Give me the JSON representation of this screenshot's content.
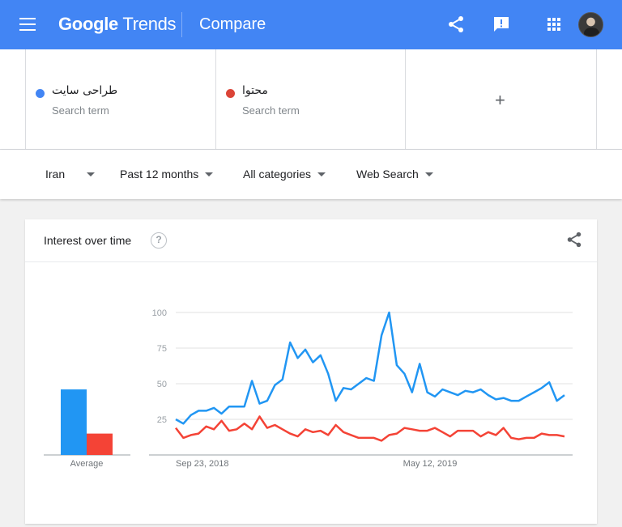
{
  "header": {
    "logo_google": "Google",
    "logo_trends": "Trends",
    "title": "Compare",
    "icons": [
      "menu-icon",
      "share-icon",
      "feedback-icon",
      "apps-icon",
      "avatar"
    ]
  },
  "terms": [
    {
      "name": "طراحی سایت",
      "subtitle": "Search term",
      "color": "#4285f4"
    },
    {
      "name": "محتوا",
      "subtitle": "Search term",
      "color": "#db4437"
    }
  ],
  "add_term": {
    "label": "+"
  },
  "filters": {
    "region": "Iran",
    "period": "Past 12 months",
    "category": "All categories",
    "search_type": "Web Search"
  },
  "card": {
    "title": "Interest over time",
    "help": "?"
  },
  "chart_data": {
    "type": "line",
    "x_ticks": [
      "Sep 23, 2018",
      "May 12, 2019"
    ],
    "y_ticks": [
      100,
      75,
      50,
      25
    ],
    "ylim": [
      0,
      100
    ],
    "grid": true,
    "average_label": "Average",
    "averages": [
      46,
      15
    ],
    "series": [
      {
        "name": "طراحی سایت",
        "color": "#2196f3",
        "values": [
          25,
          22,
          28,
          31,
          31,
          33,
          29,
          34,
          34,
          34,
          52,
          36,
          38,
          49,
          53,
          79,
          68,
          74,
          65,
          70,
          57,
          38,
          47,
          46,
          50,
          54,
          52,
          84,
          100,
          63,
          57,
          44,
          64,
          44,
          41,
          46,
          44,
          42,
          45,
          44,
          46,
          42,
          39,
          40,
          38,
          38,
          41,
          44,
          47,
          51,
          38,
          42
        ]
      },
      {
        "name": "محتوا",
        "color": "#f44336",
        "values": [
          19,
          12,
          14,
          15,
          20,
          18,
          24,
          17,
          18,
          22,
          18,
          27,
          19,
          21,
          18,
          15,
          13,
          18,
          16,
          17,
          14,
          21,
          16,
          14,
          12,
          12,
          12,
          10,
          14,
          15,
          19,
          18,
          17,
          17,
          19,
          16,
          13,
          17,
          17,
          17,
          13,
          16,
          14,
          19,
          12,
          11,
          12,
          12,
          15,
          14,
          14,
          13
        ]
      }
    ]
  }
}
